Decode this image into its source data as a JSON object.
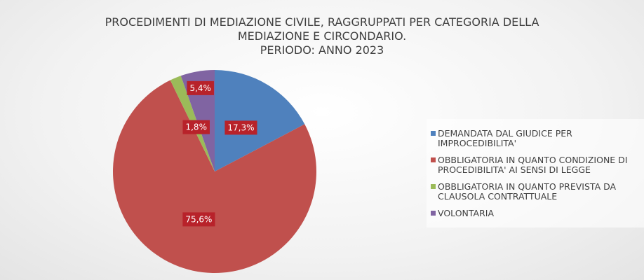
{
  "chart_data": {
    "type": "pie",
    "title": "PROCEDIMENTI DI MEDIAZIONE CIVILE, RAGGRUPPATI PER CATEGORIA DELLA MEDIAZIONE E CIRCONDARIO.",
    "subtitle": "PERIODO: ANNO 2023",
    "categories": [
      "DEMANDATA DAL GIUDICE PER IMPROCEDIBILITA'",
      "OBBLIGATORIA IN QUANTO CONDIZIONE DI PROCEDIBILITA' AI SENSI DI LEGGE",
      "OBBLIGATORIA IN QUANTO PREVISTA DA CLAUSOLA CONTRATTUALE",
      "VOLONTARIA"
    ],
    "values": [
      17.3,
      75.6,
      1.8,
      5.4
    ],
    "value_labels": [
      "17,3%",
      "75,6%",
      "1,8%",
      "5,4%"
    ],
    "colors": [
      "#4f81bd",
      "#c0504d",
      "#9bbb59",
      "#8064a2"
    ],
    "legend": "right"
  }
}
